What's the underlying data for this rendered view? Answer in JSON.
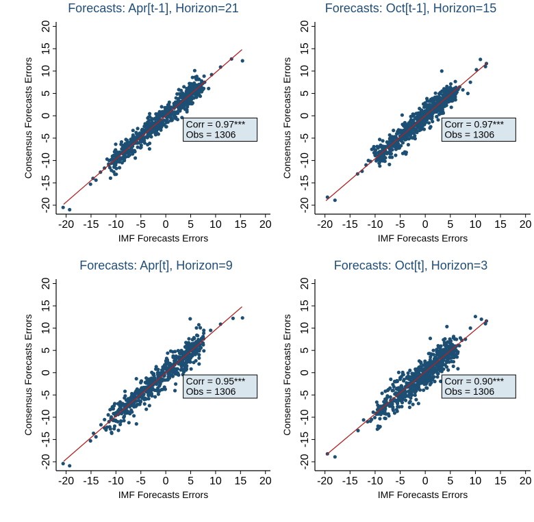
{
  "chart_data": [
    {
      "type": "scatter",
      "title": "Forecasts: Apr[t-1], Horizon=21",
      "xlabel": "IMF Forecasts Errors",
      "ylabel": "Consensus Forecasts Errors",
      "xlim": [
        -22,
        21
      ],
      "ylim": [
        -22,
        21
      ],
      "xticks": [
        -20,
        -15,
        -10,
        -5,
        0,
        5,
        10,
        15,
        20
      ],
      "yticks": [
        -20,
        -15,
        -10,
        -5,
        0,
        5,
        10,
        15,
        20
      ],
      "grid": false,
      "fit_line": {
        "x1": -20.5,
        "y1": -19.8,
        "x2": 15.3,
        "y2": 14.8
      },
      "annotation": {
        "corr": "Corr = 0.97***",
        "obs": "Obs = 1306",
        "x": 3.5,
        "y": -0.5
      },
      "cloud": {
        "x_center_range": [
          -12,
          7
        ],
        "spread": 1.3,
        "count": 600,
        "slope": 0.97,
        "intercept": 0
      },
      "outliers": [
        [
          -20.6,
          -20.5
        ],
        [
          -19.3,
          -21.0
        ],
        [
          -15.1,
          -15.3
        ],
        [
          -14.6,
          -14.0
        ],
        [
          -14.0,
          -14.4
        ],
        [
          -13.1,
          -12.6
        ],
        [
          -12.3,
          -11.7
        ],
        [
          -11.4,
          -11.0
        ],
        [
          -10.0,
          -9.0
        ],
        [
          -9.6,
          -8.6
        ],
        [
          13.2,
          12.7
        ],
        [
          15.4,
          12.3
        ],
        [
          8.6,
          6.1
        ],
        [
          7.8,
          7.5
        ],
        [
          7.2,
          7.8
        ],
        [
          9.2,
          9.2
        ],
        [
          6.6,
          8.2
        ],
        [
          5.8,
          10.1
        ],
        [
          11.0,
          10.9
        ]
      ]
    },
    {
      "type": "scatter",
      "title": "Forecasts: Oct[t-1], Horizon=15",
      "xlabel": "IMF Forecasts Errors",
      "ylabel": "Consensus Forecasts Errors",
      "xlim": [
        -22,
        21
      ],
      "ylim": [
        -22,
        21
      ],
      "xticks": [
        -20,
        -15,
        -10,
        -5,
        0,
        5,
        10,
        15,
        20
      ],
      "yticks": [
        -20,
        -15,
        -10,
        -5,
        0,
        5,
        10,
        15,
        20
      ],
      "grid": false,
      "fit_line": {
        "x1": -19.8,
        "y1": -19.0,
        "x2": 12.3,
        "y2": 11.8
      },
      "annotation": {
        "corr": "Corr = 0.97***",
        "obs": "Obs = 1306",
        "x": 3.3,
        "y": -0.5
      },
      "cloud": {
        "x_center_range": [
          -10,
          6
        ],
        "spread": 1.3,
        "count": 600,
        "slope": 0.97,
        "intercept": 0
      },
      "outliers": [
        [
          -19.5,
          -18.2
        ],
        [
          -18.0,
          -18.9
        ],
        [
          -13.5,
          -13.0
        ],
        [
          -12.6,
          -12.4
        ],
        [
          -11.8,
          -11.0
        ],
        [
          -10.9,
          -10.2
        ],
        [
          -10.0,
          -8.8
        ],
        [
          -8.6,
          -7.8
        ],
        [
          -8.0,
          -8.0
        ],
        [
          3.3,
          10.0
        ],
        [
          10.2,
          10.3
        ],
        [
          11.0,
          12.6
        ],
        [
          12.2,
          11.7
        ],
        [
          12.0,
          11.0
        ],
        [
          9.0,
          7.5
        ],
        [
          8.5,
          5.0
        ],
        [
          7.5,
          5.8
        ]
      ]
    },
    {
      "type": "scatter",
      "title": "Forecasts: Apr[t], Horizon=9",
      "xlabel": "IMF Forecasts Errors",
      "ylabel": "Consensus Forecasts Errors",
      "xlim": [
        -22,
        21
      ],
      "ylim": [
        -22,
        21
      ],
      "xticks": [
        -20,
        -15,
        -10,
        -5,
        0,
        5,
        10,
        15,
        20
      ],
      "yticks": [
        -20,
        -15,
        -10,
        -5,
        0,
        5,
        10,
        15,
        20
      ],
      "grid": false,
      "fit_line": {
        "x1": -20.5,
        "y1": -19.9,
        "x2": 15.3,
        "y2": 14.8
      },
      "annotation": {
        "corr": "Corr = 0.95***",
        "obs": "Obs = 1306",
        "x": 3.5,
        "y": -0.5
      },
      "cloud": {
        "x_center_range": [
          -12,
          7
        ],
        "spread": 1.6,
        "count": 600,
        "slope": 0.97,
        "intercept": 0
      },
      "outliers": [
        [
          -20.6,
          -20.4
        ],
        [
          -19.3,
          -20.9
        ],
        [
          -15.1,
          -15.3
        ],
        [
          -14.5,
          -13.6
        ],
        [
          -14.0,
          -14.4
        ],
        [
          -13.0,
          -11.7
        ],
        [
          -12.3,
          -12.4
        ],
        [
          -11.4,
          -11.0
        ],
        [
          -10.0,
          -9.0
        ],
        [
          -9.6,
          -8.6
        ],
        [
          13.5,
          12.2
        ],
        [
          15.4,
          12.3
        ],
        [
          11.0,
          10.9
        ],
        [
          4.9,
          12.1
        ],
        [
          6.4,
          8.3
        ],
        [
          7.6,
          7.6
        ],
        [
          9.0,
          9.5
        ]
      ]
    },
    {
      "type": "scatter",
      "title": "Forecasts: Oct[t], Horizon=3",
      "xlabel": "IMF Forecasts Errors",
      "ylabel": "Consensus Forecasts Errors",
      "xlim": [
        -22,
        21
      ],
      "ylim": [
        -22,
        21
      ],
      "xticks": [
        -20,
        -15,
        -10,
        -5,
        0,
        5,
        10,
        15,
        20
      ],
      "yticks": [
        -20,
        -15,
        -10,
        -5,
        0,
        5,
        10,
        15,
        20
      ],
      "grid": false,
      "fit_line": {
        "x1": -19.8,
        "y1": -18.5,
        "x2": 12.3,
        "y2": 11.8
      },
      "annotation": {
        "corr": "Corr = 0.90***",
        "obs": "Obs = 1306",
        "x": 3.3,
        "y": -0.5
      },
      "cloud": {
        "x_center_range": [
          -10,
          6
        ],
        "spread": 2.0,
        "count": 600,
        "slope": 0.95,
        "intercept": 0
      },
      "outliers": [
        [
          -19.5,
          -18.2
        ],
        [
          -18.0,
          -18.9
        ],
        [
          -13.4,
          -13.0
        ],
        [
          -12.3,
          -10.6
        ],
        [
          -11.5,
          -11.0
        ],
        [
          -10.7,
          -10.5
        ],
        [
          -9.0,
          -8.8
        ],
        [
          -8.0,
          -7.3
        ],
        [
          -6.6,
          -6.6
        ],
        [
          10.0,
          12.6
        ],
        [
          11.2,
          12.0
        ],
        [
          12.2,
          11.6
        ],
        [
          12.0,
          11.0
        ],
        [
          9.0,
          10.0
        ],
        [
          8.0,
          7.5
        ],
        [
          7.0,
          7.8
        ]
      ]
    }
  ]
}
